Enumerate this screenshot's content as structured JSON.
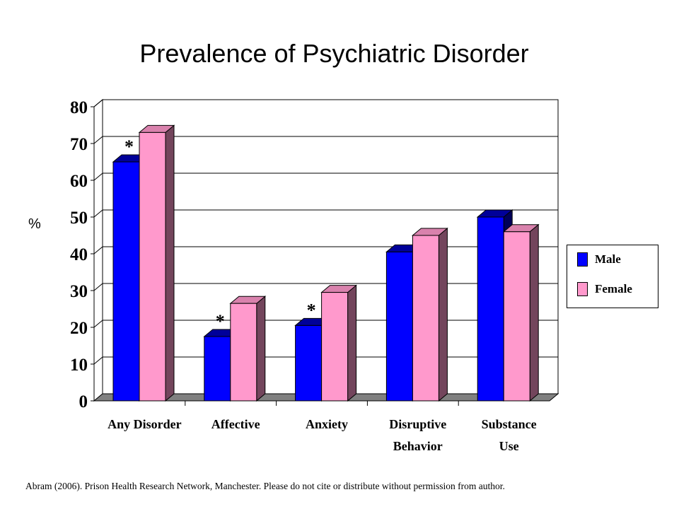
{
  "chart_data": {
    "type": "bar",
    "title": "Prevalence of Psychiatric Disorder",
    "ylabel": "%",
    "xlabel": "",
    "ylim": [
      0,
      80
    ],
    "yticks": [
      "0",
      "10",
      "20",
      "30",
      "40",
      "50",
      "60",
      "70",
      "80"
    ],
    "categories": [
      [
        "Any Disorder"
      ],
      [
        "Affective"
      ],
      [
        "Anxiety"
      ],
      [
        "Disruptive",
        "Behavior"
      ],
      [
        "Substance",
        "Use"
      ]
    ],
    "series": [
      {
        "name": "Male",
        "values": [
          65,
          17.5,
          20.5,
          40.5,
          50
        ],
        "color": "#0000ff"
      },
      {
        "name": "Female",
        "values": [
          73,
          26.5,
          29.5,
          45,
          46
        ],
        "color": "#ff99cc"
      }
    ],
    "annotations": [
      {
        "text": "*",
        "category_index": 0
      },
      {
        "text": "*",
        "category_index": 1
      },
      {
        "text": "*",
        "category_index": 2
      }
    ],
    "grid": true,
    "legend_position": "right"
  },
  "source_note": "Abram (2006). Prison Health Research Network, Manchester.  Please do not cite or distribute without permission  from author."
}
